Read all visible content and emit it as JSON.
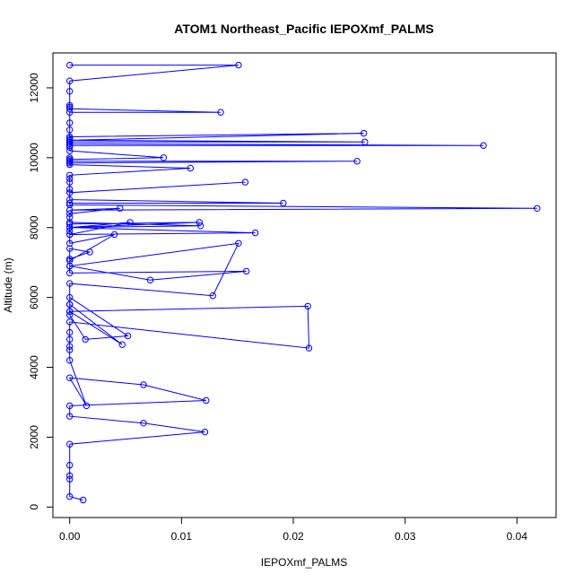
{
  "chart_data": {
    "type": "line",
    "title": "ATOM1 Northeast_Pacific IEPOXmf_PALMS",
    "xlabel": "IEPOXmf_PALMS",
    "ylabel": "Altitude (m)",
    "xlim": [
      -0.0015,
      0.0435
    ],
    "ylim": [
      -300,
      13000
    ],
    "xticks": [
      0.0,
      0.01,
      0.02,
      0.03,
      0.04
    ],
    "xtick_labels": [
      "0.00",
      "0.01",
      "0.02",
      "0.03",
      "0.04"
    ],
    "yticks": [
      0,
      2000,
      4000,
      6000,
      8000,
      10000,
      12000
    ],
    "ytick_labels": [
      "0",
      "2000",
      "4000",
      "6000",
      "8000",
      "10000",
      "12000"
    ],
    "grid": false,
    "series_color": "#0000ff",
    "marker": "open-circle",
    "x": [
      0.0012,
      0.0,
      0.0,
      0.0,
      0.0,
      0.0,
      0.0121,
      0.0066,
      0.0,
      0.0,
      0.0122,
      0.0066,
      0.0,
      0.0015,
      0.0,
      0.0,
      0.0,
      0.0,
      0.0,
      0.0,
      0.0214,
      0.0213,
      0.0,
      0.0047,
      0.0,
      0.0,
      0.0052,
      0.0014,
      0.0,
      0.0,
      0.0,
      0.0,
      0.0128,
      0.0151,
      0.0,
      0.0,
      0.0018,
      0.0,
      0.0,
      0.0158,
      0.0072,
      0.0,
      0.0,
      0.004,
      0.0,
      0.0,
      0.0054,
      0.0,
      0.0,
      0.0,
      0.0166,
      0.0,
      0.0,
      0.0116,
      0.0,
      0.0117,
      0.0,
      0.0,
      0.0,
      0.0045,
      0.0,
      0.0418,
      0.0,
      0.0,
      0.0191,
      0.0,
      0.0,
      0.0157,
      0.0,
      0.0,
      0.0,
      0.0,
      0.0,
      0.0108,
      0.0,
      0.0,
      0.0257,
      0.0,
      0.0,
      0.0,
      0.0,
      0.0,
      0.0084,
      0.0,
      0.0,
      0.0,
      0.037,
      0.0,
      0.0,
      0.0264,
      0.0,
      0.0,
      0.0263,
      0.0,
      0.0,
      0.0,
      0.0,
      0.0,
      0.0135,
      0.0,
      0.0,
      0.0,
      0.0,
      0.0,
      0.0151,
      0.0
    ],
    "y": [
      200,
      300,
      800,
      900,
      1200,
      1800,
      2150,
      2400,
      2600,
      2900,
      3050,
      3500,
      3700,
      2900,
      4200,
      4500,
      4600,
      4800,
      5000,
      5300,
      4550,
      5750,
      5600,
      4650,
      5800,
      6000,
      4900,
      4800,
      5500,
      5600,
      5800,
      6400,
      6050,
      7550,
      6900,
      7100,
      7300,
      7400,
      6700,
      6750,
      6500,
      6900,
      7050,
      7800,
      7550,
      7800,
      8150,
      8000,
      7900,
      7800,
      7850,
      8000,
      8100,
      8150,
      8000,
      8050,
      8150,
      8300,
      8400,
      8550,
      8500,
      8550,
      8650,
      8700,
      8700,
      8800,
      9000,
      9300,
      9000,
      9100,
      9300,
      9400,
      9500,
      9700,
      9800,
      9850,
      9900,
      9900,
      10000,
      9900,
      9950,
      9950,
      10000,
      10200,
      10300,
      10350,
      10350,
      10400,
      10450,
      10450,
      10500,
      10600,
      10700,
      10500,
      10550,
      10800,
      11000,
      11300,
      11300,
      11400,
      11450,
      11500,
      11900,
      12200,
      12650,
      12650
    ]
  }
}
